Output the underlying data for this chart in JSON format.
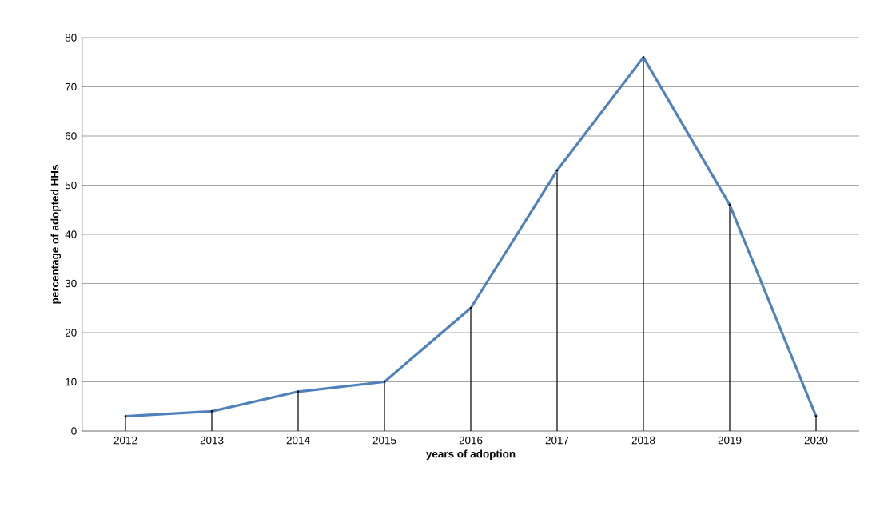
{
  "chart_data": {
    "type": "line",
    "xlabel": "years of adoption",
    "ylabel": "percentage of adopted HHs",
    "categories": [
      "2012",
      "2013",
      "2014",
      "2015",
      "2016",
      "2017",
      "2018",
      "2019",
      "2020"
    ],
    "series": [
      {
        "type": "lollipop",
        "color": "#000000",
        "values": [
          3,
          4,
          8,
          10,
          25,
          53,
          76,
          46,
          3
        ]
      },
      {
        "color": "#4f81bd",
        "values": [
          3,
          4,
          8,
          10,
          25,
          53,
          76,
          46,
          3
        ]
      }
    ],
    "ylim": [
      0,
      80
    ],
    "yticks": [
      0,
      10,
      20,
      30,
      40,
      50,
      60,
      70,
      80
    ],
    "grid": "y"
  }
}
